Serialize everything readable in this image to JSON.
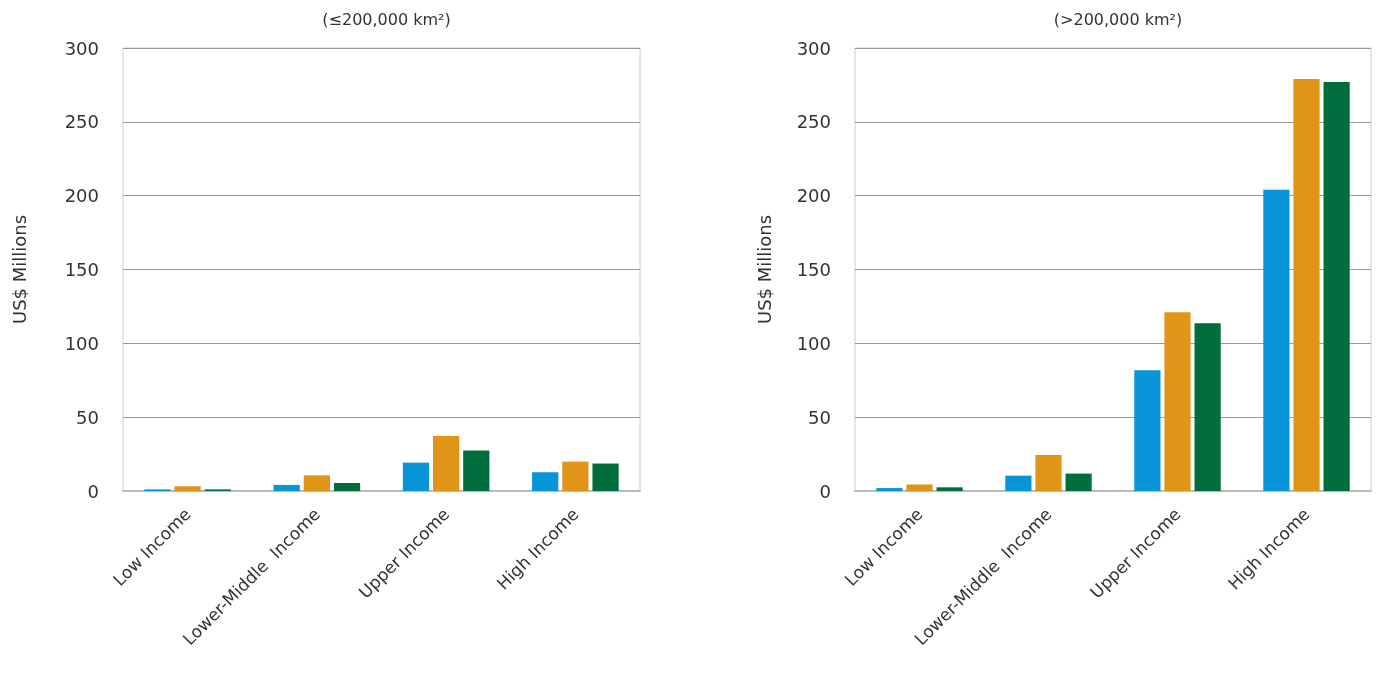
{
  "chart_data": [
    {
      "type": "bar",
      "title": "(≤200,000 km²)",
      "ylabel": "US$ Millions",
      "categories": [
        "Low Income",
        "Lower-Middle  Income",
        "Upper Income",
        "High Income"
      ],
      "series": [
        {
          "color": "#0895d8",
          "values": [
            1.1,
            4.1,
            19.2,
            12.7
          ]
        },
        {
          "color": "#e09518",
          "values": [
            3.2,
            10.6,
            37.3,
            19.9
          ]
        },
        {
          "color": "#006e3c",
          "values": [
            1.1,
            5.4,
            27.4,
            18.6
          ]
        }
      ],
      "ylim": [
        0,
        300
      ],
      "yticks": [
        0,
        50,
        100,
        150,
        200,
        250,
        300
      ],
      "grid": "y"
    },
    {
      "type": "bar",
      "title": "(>200,000 km²)",
      "ylabel": "US$ Millions",
      "categories": [
        "Low Income",
        "Lower-Middle  Income",
        "Upper Income",
        "High Income"
      ],
      "series": [
        {
          "color": "#0895d8",
          "values": [
            2,
            10.4,
            81.7,
            204
          ]
        },
        {
          "color": "#e09518",
          "values": [
            4.4,
            24.4,
            121,
            279
          ]
        },
        {
          "color": "#006e3c",
          "values": [
            2.5,
            11.8,
            113.6,
            277
          ]
        }
      ],
      "ylim": [
        0,
        300
      ],
      "yticks": [
        0,
        50,
        100,
        150,
        200,
        250,
        300
      ],
      "grid": "y"
    }
  ]
}
